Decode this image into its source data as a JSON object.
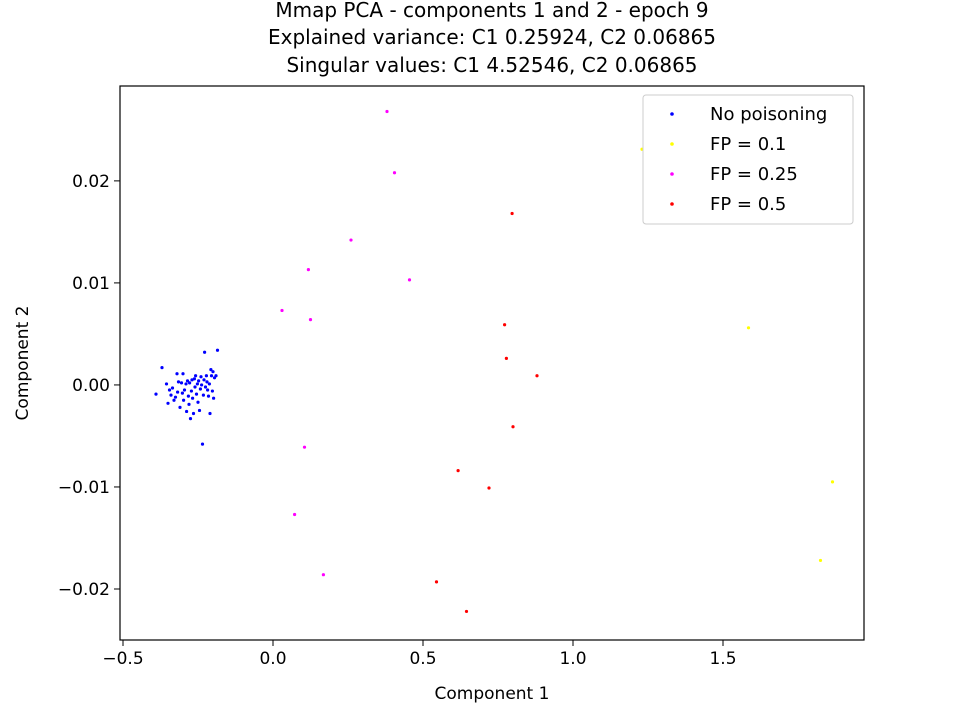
{
  "chart_data": {
    "type": "scatter",
    "title": [
      "Mmap PCA - components 1 and 2 - epoch 9",
      "Explained variance: C1 0.25924, C2 0.06865",
      "Singular values: C1 4.52546, C2 0.06865"
    ],
    "xlabel": "Component 1",
    "ylabel": "Component 2",
    "xlim": [
      -0.51,
      1.97
    ],
    "ylim": [
      -0.025,
      0.0293
    ],
    "xticks": [
      -0.5,
      0.0,
      0.5,
      1.0,
      1.5
    ],
    "xtick_labels": [
      "−0.5",
      "0.0",
      "0.5",
      "1.0",
      "1.5"
    ],
    "yticks": [
      -0.02,
      -0.01,
      0.0,
      0.01,
      0.02
    ],
    "ytick_labels": [
      "−0.02",
      "−0.01",
      "0.00",
      "0.01",
      "0.02"
    ],
    "grid": false,
    "legend_position": "top-right",
    "series": [
      {
        "name": "No poisoning",
        "color": "#0000ff",
        "points": [
          [
            -0.39,
            -0.0009
          ],
          [
            -0.37,
            0.0017
          ],
          [
            -0.355,
            0.0001
          ],
          [
            -0.35,
            -0.0018
          ],
          [
            -0.345,
            -0.0005
          ],
          [
            -0.34,
            -0.001
          ],
          [
            -0.335,
            -0.0003
          ],
          [
            -0.33,
            -0.0015
          ],
          [
            -0.325,
            -0.0012
          ],
          [
            -0.32,
            0.0011
          ],
          [
            -0.318,
            -0.0007
          ],
          [
            -0.315,
            0.0003
          ],
          [
            -0.31,
            -0.0022
          ],
          [
            -0.305,
            0.0002
          ],
          [
            -0.302,
            -0.0008
          ],
          [
            -0.3,
            0.0011
          ],
          [
            -0.298,
            -0.0015
          ],
          [
            -0.295,
            -0.0005
          ],
          [
            -0.29,
            0.0001
          ],
          [
            -0.288,
            -0.0026
          ],
          [
            -0.285,
            0.0004
          ],
          [
            -0.282,
            -0.0011
          ],
          [
            -0.28,
            -0.0019
          ],
          [
            -0.278,
            0.0002
          ],
          [
            -0.275,
            -0.0033
          ],
          [
            -0.272,
            -0.0006
          ],
          [
            -0.27,
            0.0005
          ],
          [
            -0.268,
            -0.0013
          ],
          [
            -0.265,
            -0.0028
          ],
          [
            -0.262,
            0.0006
          ],
          [
            -0.26,
            -0.0002
          ],
          [
            -0.258,
            0.0009
          ],
          [
            -0.255,
            -0.0009
          ],
          [
            -0.252,
            0.0001
          ],
          [
            -0.25,
            -0.0017
          ],
          [
            -0.248,
            0.0004
          ],
          [
            -0.245,
            -0.0025
          ],
          [
            -0.242,
            -0.0004
          ],
          [
            -0.24,
            0.0008
          ],
          [
            -0.238,
            0.0
          ],
          [
            -0.235,
            -0.0058
          ],
          [
            -0.232,
            -0.001
          ],
          [
            -0.23,
            0.0005
          ],
          [
            -0.228,
            0.0032
          ],
          [
            -0.225,
            -0.0002
          ],
          [
            -0.222,
            0.0009
          ],
          [
            -0.22,
            0.0003
          ],
          [
            -0.218,
            -0.0005
          ],
          [
            -0.215,
            -0.0011
          ],
          [
            -0.212,
            0.0001
          ],
          [
            -0.21,
            -0.0028
          ],
          [
            -0.207,
            0.0015
          ],
          [
            -0.205,
            0.0009
          ],
          [
            -0.202,
            -0.0006
          ],
          [
            -0.2,
            0.0013
          ],
          [
            -0.198,
            -0.0013
          ],
          [
            -0.195,
            0.0007
          ],
          [
            -0.19,
            0.0009
          ],
          [
            -0.185,
            0.0034
          ]
        ]
      },
      {
        "name": "FP = 0.1",
        "color": "#ffff00",
        "points": [
          [
            1.23,
            0.0231
          ],
          [
            1.585,
            0.0056
          ],
          [
            1.865,
            -0.0095
          ],
          [
            1.825,
            -0.0172
          ]
        ]
      },
      {
        "name": "FP = 0.25",
        "color": "#ff00ff",
        "points": [
          [
            0.38,
            0.0268
          ],
          [
            0.405,
            0.0208
          ],
          [
            0.26,
            0.0142
          ],
          [
            0.118,
            0.0113
          ],
          [
            0.455,
            0.0103
          ],
          [
            0.03,
            0.0073
          ],
          [
            0.125,
            0.0064
          ],
          [
            0.105,
            -0.0061
          ],
          [
            0.072,
            -0.0127
          ],
          [
            0.168,
            -0.0186
          ]
        ]
      },
      {
        "name": "FP = 0.5",
        "color": "#ff0000",
        "points": [
          [
            0.797,
            0.0168
          ],
          [
            0.772,
            0.0059
          ],
          [
            0.778,
            0.0026
          ],
          [
            0.88,
            0.0009
          ],
          [
            0.8,
            -0.0041
          ],
          [
            0.617,
            -0.0084
          ],
          [
            0.72,
            -0.0101
          ],
          [
            0.545,
            -0.0193
          ],
          [
            0.645,
            -0.0222
          ]
        ]
      }
    ]
  }
}
